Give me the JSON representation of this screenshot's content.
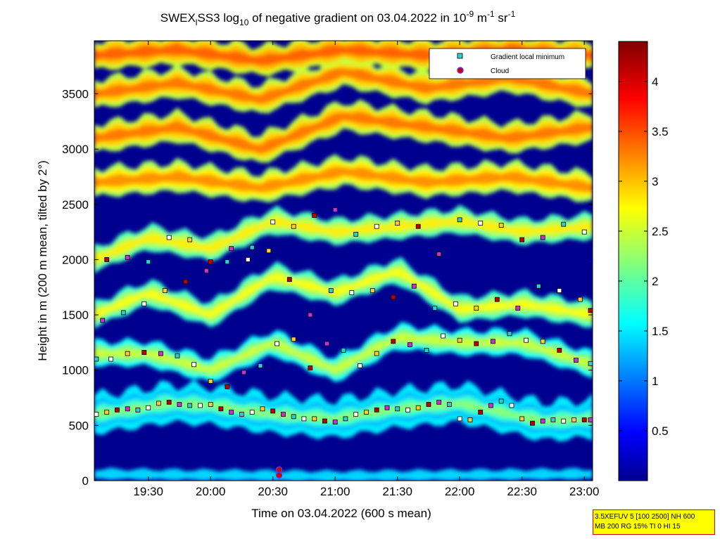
{
  "figure": {
    "title_parts": {
      "a": "SWEX",
      "a_sub": "l",
      "b": "SS3 log",
      "b_sub": "10",
      "c": " of negative gradient on 03.04.2022 in 10",
      "sup1": "-9",
      "d": " m",
      "sup2": "-1",
      "e": " sr",
      "sup3": "-1"
    },
    "info_lines": [
      "3.5XEFUV 5 [100 2500] NH 600",
      "MB 200 RG 15% TI 0 HI 15"
    ]
  },
  "chart_data": {
    "type": "heatmap",
    "title": "SWEX SS3 log10 of negative gradient on 03.04.2022 in 10^-9 m^-1 sr^-1",
    "xlabel": "Time on 03.04.2022 (600 s mean)",
    "ylabel": "Height in m (200 m mean, tilted by 2°)",
    "x_ticks": [
      "19:30",
      "20:00",
      "20:30",
      "21:00",
      "21:30",
      "22:00",
      "22:30",
      "23:00"
    ],
    "x_tick_minutes": [
      1170,
      1200,
      1230,
      1260,
      1290,
      1320,
      1350,
      1380
    ],
    "xlim_minutes": [
      1144,
      1384
    ],
    "y_ticks": [
      "0",
      "500",
      "1000",
      "1500",
      "2000",
      "2500",
      "3000",
      "3500"
    ],
    "y_tick_values": [
      0,
      500,
      1000,
      1500,
      2000,
      2500,
      3000,
      3500
    ],
    "ylim": [
      0,
      3980
    ],
    "colorbar": {
      "ticks": [
        "0.5",
        "1",
        "1.5",
        "2",
        "2.5",
        "3",
        "3.5",
        "4"
      ],
      "tick_values": [
        0.5,
        1,
        1.5,
        2,
        2.5,
        3,
        3.5,
        4
      ],
      "range": [
        0,
        4.4
      ],
      "colormap": "jet"
    },
    "legend": {
      "placement": "top-right",
      "entries": [
        {
          "label": "Gradient local minimum",
          "marker": "square",
          "color": "#33cccc"
        },
        {
          "label": "Cloud",
          "marker": "circle",
          "color": "#cc0000",
          "edge": "#6633cc"
        }
      ]
    },
    "layers": [
      {
        "name": "surface layer",
        "time": [
          1144,
          1200,
          1260,
          1320,
          1384
        ],
        "height": [
          60,
          50,
          40,
          50,
          60
        ],
        "value": 1.4
      },
      {
        "name": "boundary layer top",
        "time": [
          1144,
          1160,
          1180,
          1200,
          1230,
          1260,
          1290,
          1320,
          1340,
          1360,
          1384
        ],
        "height": [
          600,
          640,
          700,
          680,
          600,
          560,
          650,
          700,
          620,
          540,
          560
        ],
        "value": 2.1
      },
      {
        "name": "layer 1",
        "time": [
          1144,
          1170,
          1200,
          1230,
          1260,
          1290,
          1320,
          1350,
          1384
        ],
        "height": [
          1150,
          1150,
          1000,
          1250,
          1000,
          1300,
          1250,
          1250,
          1050
        ],
        "value": 2.4
      },
      {
        "name": "layer 2",
        "time": [
          1144,
          1170,
          1200,
          1230,
          1260,
          1290,
          1320,
          1350,
          1384
        ],
        "height": [
          1500,
          1700,
          1500,
          1850,
          1700,
          1900,
          1550,
          1600,
          1500
        ],
        "value": 2.6
      },
      {
        "name": "layer 3",
        "time": [
          1144,
          1170,
          1200,
          1230,
          1260,
          1290,
          1320,
          1350,
          1384
        ],
        "height": [
          2000,
          2200,
          2100,
          2350,
          2250,
          2300,
          2350,
          2250,
          2300
        ],
        "value": 2.7
      },
      {
        "name": "aloft band 1",
        "time": [
          1144,
          1184,
          1224,
          1264,
          1304,
          1344,
          1384
        ],
        "height": [
          2700,
          2750,
          2650,
          2800,
          2700,
          2750,
          2650
        ],
        "value": 3.1
      },
      {
        "name": "aloft band 2",
        "time": [
          1144,
          1184,
          1224,
          1264,
          1304,
          1344,
          1384
        ],
        "height": [
          3100,
          3200,
          3000,
          3300,
          3200,
          3100,
          3200
        ],
        "value": 3.2
      },
      {
        "name": "aloft band 3",
        "time": [
          1144,
          1184,
          1224,
          1264,
          1304,
          1344,
          1384
        ],
        "height": [
          3500,
          3600,
          3450,
          3700,
          3550,
          3650,
          3500
        ],
        "value": 3.2
      },
      {
        "name": "top band",
        "time": [
          1144,
          1184,
          1224,
          1264,
          1304,
          1344,
          1384
        ],
        "height": [
          3850,
          3900,
          3800,
          3900,
          3850,
          3900,
          3850
        ],
        "value": 3.3
      }
    ],
    "gradient_minima_traces": [
      {
        "time": [
          1145,
          1150,
          1155,
          1160,
          1165,
          1170,
          1175,
          1180,
          1185,
          1190,
          1195,
          1200,
          1205,
          1210,
          1215,
          1220,
          1225,
          1230,
          1235,
          1240,
          1245,
          1250,
          1255,
          1260,
          1265,
          1270,
          1275,
          1280,
          1285,
          1290,
          1295,
          1300,
          1305,
          1310,
          1315,
          1320,
          1325,
          1330,
          1335,
          1340,
          1345,
          1350,
          1355,
          1360,
          1365,
          1370,
          1375,
          1380,
          1383
        ],
        "height": [
          600,
          620,
          640,
          650,
          640,
          660,
          700,
          710,
          690,
          680,
          680,
          690,
          650,
          620,
          600,
          620,
          650,
          630,
          600,
          580,
          560,
          560,
          540,
          530,
          560,
          600,
          620,
          640,
          660,
          650,
          640,
          660,
          690,
          710,
          690,
          560,
          550,
          620,
          680,
          720,
          680,
          560,
          520,
          540,
          550,
          540,
          550,
          550,
          550
        ]
      },
      {
        "time": [
          1145,
          1152,
          1160,
          1168,
          1176,
          1184,
          1192,
          1200,
          1208,
          1216,
          1224,
          1232,
          1240,
          1248,
          1256,
          1264,
          1272,
          1280,
          1288,
          1296,
          1304,
          1312,
          1320,
          1328,
          1336,
          1344,
          1352,
          1360,
          1368,
          1376,
          1383
        ],
        "height": [
          1100,
          1100,
          1150,
          1160,
          1150,
          1130,
          1050,
          900,
          850,
          980,
          1040,
          1240,
          1280,
          1020,
          1240,
          1180,
          1040,
          1150,
          1260,
          1230,
          1180,
          1310,
          1270,
          1240,
          1260,
          1330,
          1270,
          1260,
          1180,
          1090,
          1060
        ]
      },
      {
        "time": [
          1148,
          1158,
          1168,
          1178,
          1188,
          1198,
          1208,
          1218,
          1228,
          1238,
          1248,
          1258,
          1268,
          1278,
          1288,
          1298,
          1308,
          1318,
          1328,
          1338,
          1348,
          1358,
          1368,
          1378,
          1383
        ],
        "height": [
          1450,
          1520,
          1600,
          1720,
          1800,
          1900,
          1980,
          2000,
          2080,
          1820,
          1500,
          1720,
          1700,
          1720,
          1660,
          1760,
          1560,
          1600,
          1560,
          1640,
          1560,
          1760,
          1720,
          1640,
          1540
        ]
      },
      {
        "time": [
          1150,
          1160,
          1170,
          1180,
          1190,
          1200,
          1210,
          1220,
          1230,
          1240,
          1250,
          1260,
          1270,
          1280,
          1290,
          1300,
          1310,
          1320,
          1330,
          1340,
          1350,
          1360,
          1370,
          1380
        ],
        "height": [
          2000,
          2020,
          1980,
          2200,
          2180,
          1980,
          2100,
          2110,
          2340,
          2300,
          2400,
          2450,
          2230,
          2300,
          2330,
          2300,
          2050,
          2360,
          2330,
          2310,
          2180,
          2200,
          2320,
          2250
        ]
      }
    ],
    "clouds": [
      {
        "time": [
          1233,
          1233
        ],
        "height": [
          100,
          50
        ]
      }
    ]
  }
}
